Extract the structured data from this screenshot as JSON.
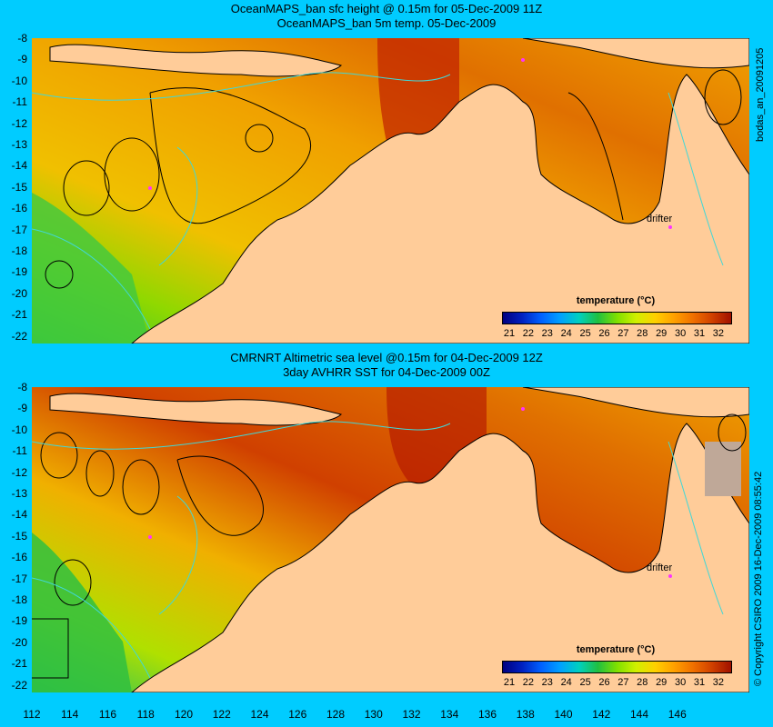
{
  "top": {
    "title1": "OceanMAPS_ban sfc height @ 0.15m for 05-Dec-2009 11Z",
    "title2": "OceanMAPS_ban 5m temp. 05-Dec-2009",
    "side_label": "bodas_an_20091205",
    "colorbar_title": "temperature (°C)",
    "drifter_label": "drifter"
  },
  "bottom": {
    "title1": "CMRNRT Altimetric sea level  @0.15m  for 04-Dec-2009 12Z",
    "title2": "3day AVHRR SST for 04-Dec-2009 00Z",
    "side_label": "© Copyright CSIRO 2009   16-Dec-2009 08:55:42",
    "colorbar_title": "temperature (°C)",
    "drifter_label": "drifter"
  },
  "y_ticks": [
    "-8",
    "-9",
    "-10",
    "-11",
    "-12",
    "-13",
    "-14",
    "-15",
    "-16",
    "-17",
    "-18",
    "-19",
    "-20",
    "-21",
    "-22"
  ],
  "x_ticks": [
    "112",
    "114",
    "116",
    "118",
    "120",
    "122",
    "124",
    "126",
    "128",
    "130",
    "132",
    "134",
    "136",
    "138",
    "140",
    "142",
    "144",
    "146"
  ],
  "colorbar_ticks": [
    "21",
    "22",
    "23",
    "24",
    "25",
    "26",
    "27",
    "28",
    "29",
    "30",
    "31",
    "32"
  ],
  "colors": {
    "background": "#00ccff",
    "land": "#ffcc99",
    "no_data": "#bfa898",
    "contour_depth": "#40d8d8",
    "contour_height": "#000000",
    "drifter": "#ff33ff"
  },
  "colorscale": [
    "#000080",
    "#0020c0",
    "#0060ff",
    "#00a0ff",
    "#00d0c0",
    "#20c040",
    "#80e000",
    "#d0f000",
    "#ffd000",
    "#ffa000",
    "#f07000",
    "#d04000",
    "#a01000"
  ]
}
